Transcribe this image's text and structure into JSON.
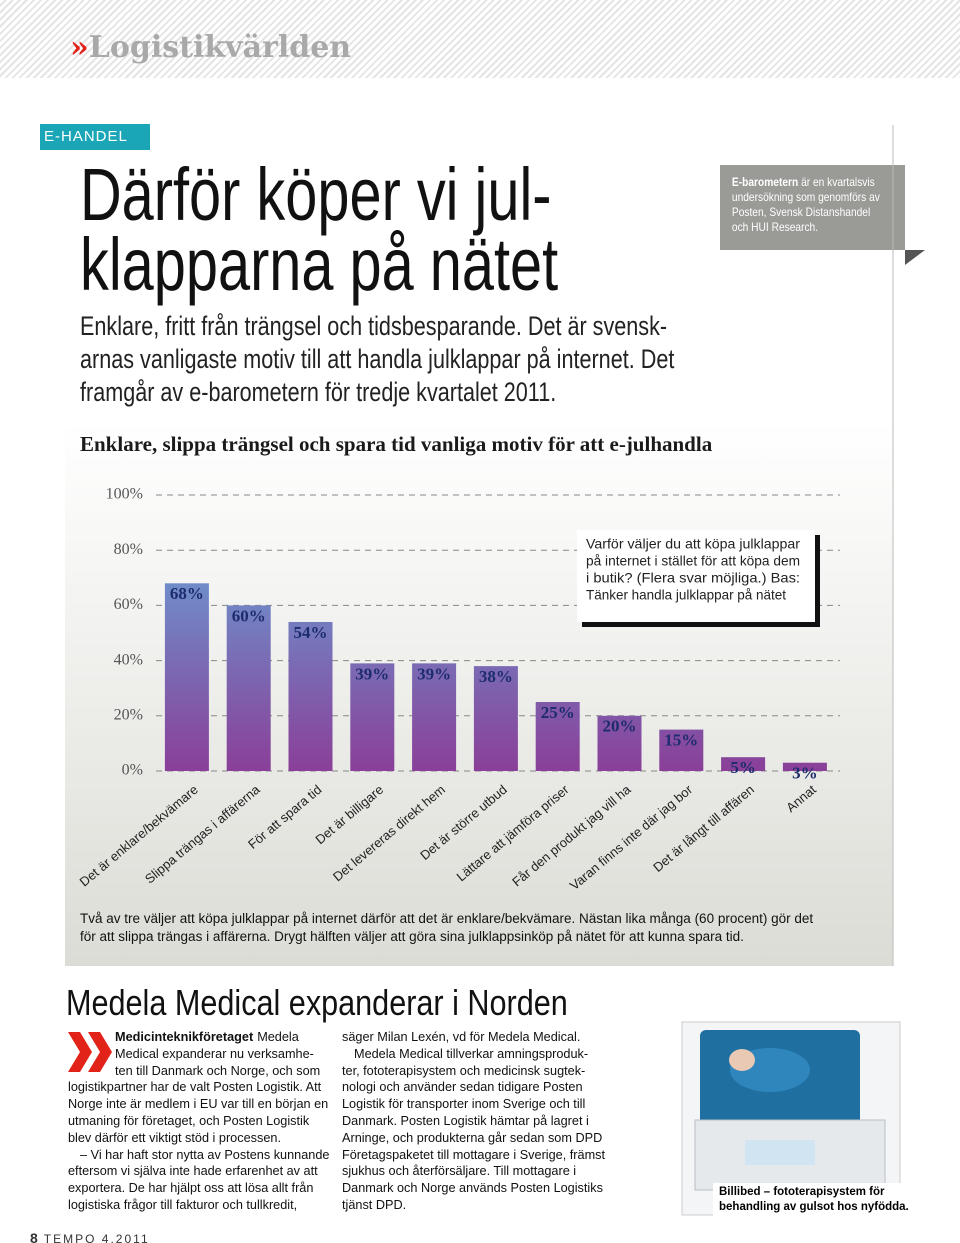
{
  "header": {
    "mark": "»",
    "brand": "Logistikvärlden",
    "section": "E-HANDEL"
  },
  "article": {
    "headline": [
      "Därför köper vi jul-",
      "klapparna på nätet"
    ],
    "intro": [
      "Enklare, fritt från trängsel och tidsbesparande. Det är svensk-",
      "arnas vanligaste motiv till att handla julklappar på internet. Det",
      "framgår av e-barometern för tredje kvartalet 2011."
    ],
    "sidebar": {
      "lead": "E-barometern",
      "lines": [
        "är en kvartalsvis",
        "undersökning som genomförs av",
        "Posten, Svensk Distanshandel",
        "och HUI Research."
      ]
    }
  },
  "chart_data": {
    "type": "bar",
    "title": "Enklare, slippa trängsel och spara tid vanliga motiv för att e-julhandla",
    "categories": [
      "Det är enklare/bekvämare",
      "Slippa trängas i affärerna",
      "För att spara tid",
      "Det är billigare",
      "Det levereras direkt hem",
      "Det är större utbud",
      "Lättare att jämföra priser",
      "Får den produkt jag vill ha",
      "Varan finns inte där jag bor",
      "Det är långt till affären",
      "Annat"
    ],
    "values": [
      68,
      60,
      54,
      39,
      39,
      38,
      25,
      20,
      15,
      5,
      3
    ],
    "value_labels": [
      "68%",
      "60%",
      "54%",
      "39%",
      "39%",
      "38%",
      "25%",
      "20%",
      "15%",
      "5%",
      "3%"
    ],
    "colors": [
      "#62b0e0",
      "#8a3f98"
    ],
    "ylim": [
      0,
      100
    ],
    "yticks": [
      {
        "value": 0,
        "label": "0%"
      },
      {
        "value": 20,
        "label": "20%"
      },
      {
        "value": 40,
        "label": "40%"
      },
      {
        "value": 60,
        "label": "60%"
      },
      {
        "value": 80,
        "label": "80%"
      },
      {
        "value": 100,
        "label": "100%"
      }
    ],
    "grid": true,
    "annotation": [
      "Varför väljer du att köpa julklappar",
      "på internet i stället för att köpa dem",
      "i butik? (Flera svar möjliga.) Bas:",
      "Tänker handla julklappar på nätet"
    ],
    "caption": [
      "Två av tre väljer att köpa julklappar på internet därför att det är enklare/bekvämare. Nästan lika många (60 procent) gör det",
      "för att slippa trängas i affärerna. Drygt hälften väljer att göra sina julklappsinköp på nätet för att kunna spara tid."
    ]
  },
  "article2": {
    "headline": "Medela Medical expanderar i Norden",
    "lead": "Medicinteknikföretaget",
    "col1": [
      "Medela",
      "Medical expanderar nu verksamhe-",
      "ten till Danmark och Norge, och som",
      "logistikpartner har de valt Posten Logistik. Att",
      "Norge inte är medlem i EU var till en början en",
      "utmaning för företaget, och Posten Logistik",
      "blev därför ett viktigt stöd i processen.",
      "– Vi har haft stor nytta av Postens kunnande",
      "eftersom vi själva inte hade erfarenhet av att",
      "exportera. De har hjälpt oss att lösa allt från",
      "logistiska frågor till fakturor och tullkredit,"
    ],
    "col2": [
      "säger Milan Lexén, vd för Medela Medical.",
      "Medela Medical tillverkar amningsproduk-",
      "ter, fototerapisystem och medicinsk sugtek-",
      "nologi och använder sedan tidigare Posten",
      "Logistik för transporter inom Sverige och till",
      "Danmark. Posten Logistik hämtar på lagret i",
      "Arninge, och produkterna går sedan som DPD",
      "Företagspaketet till mottagare i Sverige, främst",
      "sjukhus och återförsäljare. Till mottagare i",
      "Danmark och Norge används Posten Logistiks",
      "tjänst DPD."
    ],
    "photo_caption": [
      "Billibed – fototerapisystem för",
      "behandling av gulsot hos nyfödda."
    ]
  },
  "footer": {
    "page": "8",
    "issue": "TEMPO 4.2011"
  }
}
